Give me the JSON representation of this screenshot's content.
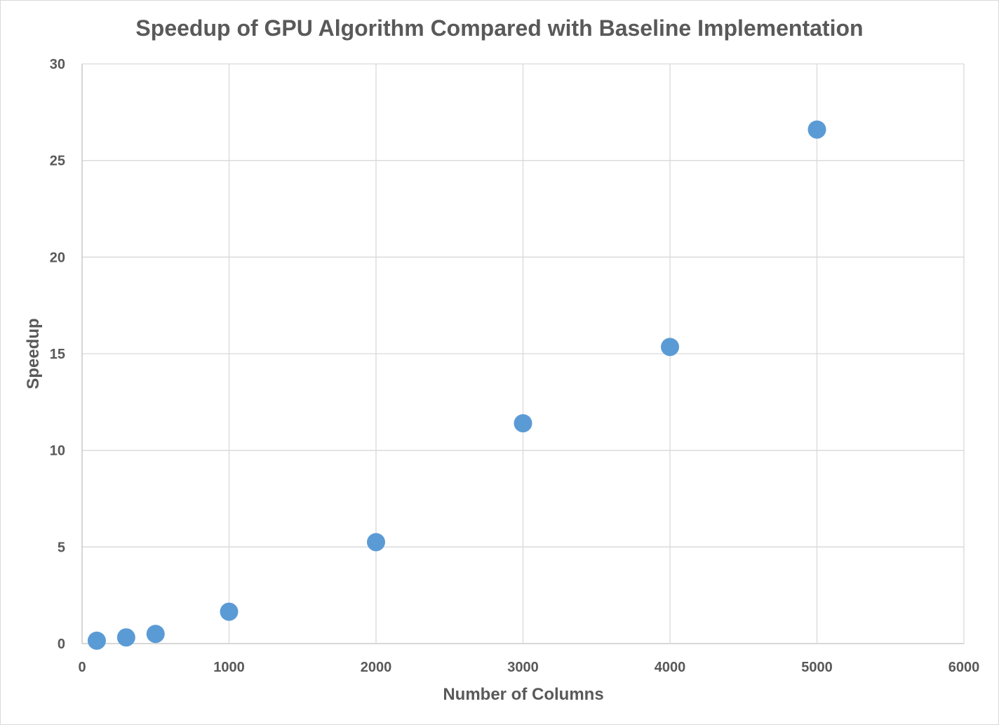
{
  "chart_data": {
    "type": "scatter",
    "title": "Speedup of GPU Algorithm Compared with Baseline Implementation",
    "xlabel": "Number of Columns",
    "ylabel": "Speedup",
    "xlim": [
      0,
      6000
    ],
    "ylim": [
      0,
      30
    ],
    "xticks": [
      "0",
      "1000",
      "2000",
      "3000",
      "4000",
      "5000",
      "6000"
    ],
    "yticks": [
      "0",
      "5",
      "10",
      "15",
      "20",
      "25",
      "30"
    ],
    "grid": true,
    "series": [
      {
        "marker_color": "#5b9bd5",
        "points": [
          {
            "x": 100,
            "y": 0.15
          },
          {
            "x": 300,
            "y": 0.32
          },
          {
            "x": 500,
            "y": 0.5
          },
          {
            "x": 1000,
            "y": 1.65
          },
          {
            "x": 2000,
            "y": 5.25
          },
          {
            "x": 3000,
            "y": 11.4
          },
          {
            "x": 4000,
            "y": 15.35
          },
          {
            "x": 5000,
            "y": 26.6
          }
        ]
      }
    ]
  }
}
